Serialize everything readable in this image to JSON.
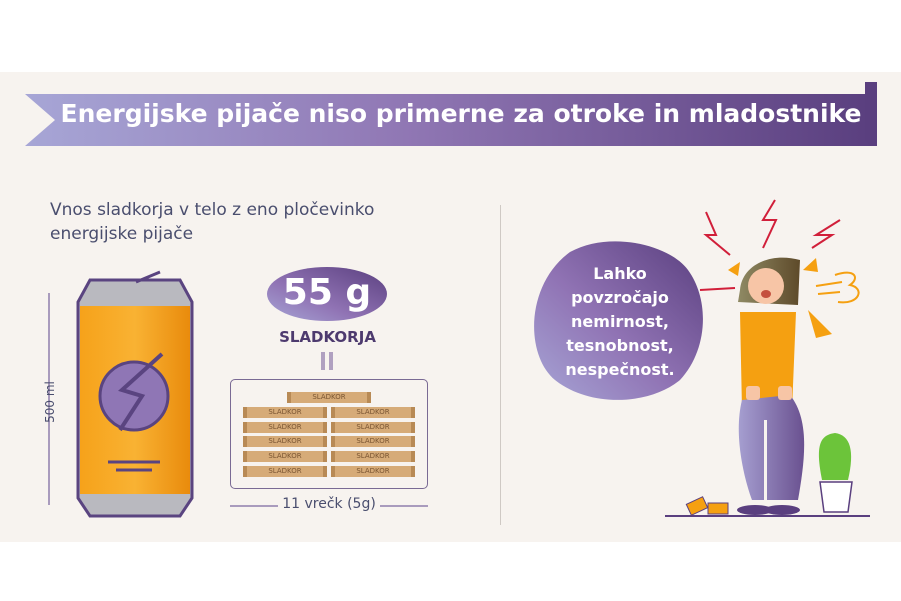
{
  "header": {
    "title": "Energijske pijače niso primerne za otroke in mladostnike"
  },
  "left": {
    "subtitle": "Vnos sladkorja v telo z eno pločevinko energijske pijače",
    "can_volume": "500 ml",
    "sugar_amount": "55 g",
    "sugar_label": "SLADKORJA",
    "sachet_label": "SLADKOR",
    "sachet_count_label": "11 vrečk (5g)"
  },
  "right": {
    "bubble_text": "Lahko povzročajo nemirnost, tesnobnost, nespečnost."
  },
  "colors": {
    "purple": "#5a4480",
    "orange": "#f5a011",
    "background": "#f7f3ef"
  }
}
